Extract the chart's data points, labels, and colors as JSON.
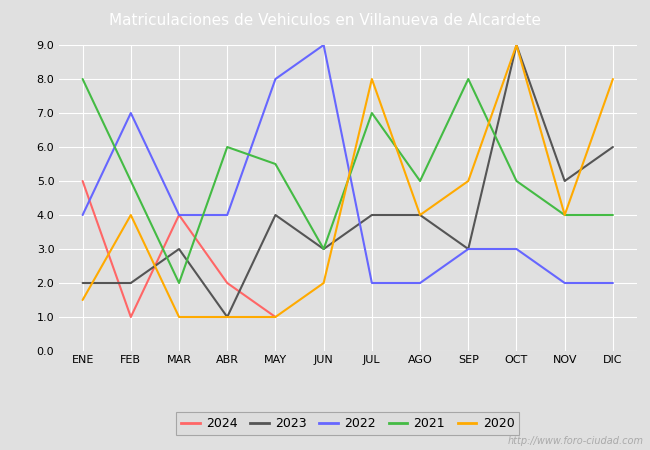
{
  "title": "Matriculaciones de Vehiculos en Villanueva de Alcardete",
  "months": [
    "ENE",
    "FEB",
    "MAR",
    "ABR",
    "MAY",
    "JUN",
    "JUL",
    "AGO",
    "SEP",
    "OCT",
    "NOV",
    "DIC"
  ],
  "series": {
    "2024": {
      "values": [
        5.0,
        1.0,
        4.0,
        2.0,
        1.0,
        null,
        null,
        null,
        null,
        null,
        null,
        null
      ],
      "color": "#ff6666",
      "label": "2024"
    },
    "2023": {
      "values": [
        2.0,
        2.0,
        3.0,
        1.0,
        4.0,
        3.0,
        4.0,
        4.0,
        3.0,
        9.0,
        5.0,
        6.0
      ],
      "color": "#555555",
      "label": "2023"
    },
    "2022": {
      "values": [
        4.0,
        7.0,
        4.0,
        4.0,
        8.0,
        9.0,
        2.0,
        2.0,
        3.0,
        3.0,
        2.0,
        2.0
      ],
      "color": "#6666ff",
      "label": "2022"
    },
    "2021": {
      "values": [
        8.0,
        5.0,
        2.0,
        6.0,
        5.5,
        3.0,
        7.0,
        5.0,
        8.0,
        5.0,
        4.0,
        4.0
      ],
      "color": "#44bb44",
      "label": "2021"
    },
    "2020": {
      "values": [
        1.5,
        4.0,
        1.0,
        1.0,
        1.0,
        2.0,
        8.0,
        4.0,
        5.0,
        9.0,
        4.0,
        8.0
      ],
      "color": "#ffaa00",
      "label": "2020"
    }
  },
  "ylim": [
    0.0,
    9.0
  ],
  "yticks": [
    0.0,
    1.0,
    2.0,
    3.0,
    4.0,
    5.0,
    6.0,
    7.0,
    8.0,
    9.0
  ],
  "plot_bg_color": "#e0e0e0",
  "fig_bg_color": "#e0e0e0",
  "title_bg_color": "#5588cc",
  "title_color": "white",
  "title_fontsize": 11,
  "grid_color": "#ffffff",
  "watermark": "http://www.foro-ciudad.com",
  "watermark_color": "#aaaaaa",
  "tick_fontsize": 8,
  "legend_fontsize": 9,
  "line_width": 1.5
}
